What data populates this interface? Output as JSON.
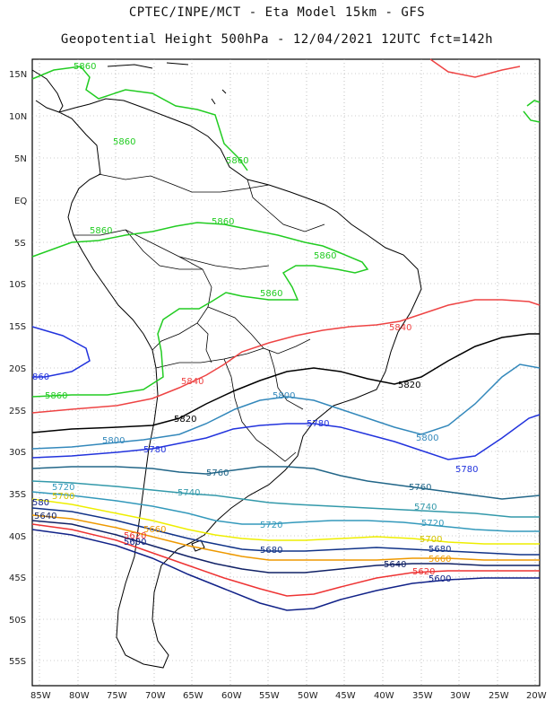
{
  "title_line1": "CPTEC/INPE/MCT -  Eta Model 15km - GFS",
  "title_line2": "Geopotential Height 500hPa - 12/04/2021 12UTC fct=142h",
  "lat_labels": [
    "15N",
    "10N",
    "5N",
    "EQ",
    "5S",
    "10S",
    "15S",
    "20S",
    "25S",
    "30S",
    "35S",
    "40S",
    "45S",
    "50S",
    "55S"
  ],
  "lon_labels": [
    "85W",
    "80W",
    "75W",
    "70W",
    "65W",
    "60W",
    "55W",
    "50W",
    "45W",
    "40W",
    "35W",
    "30W",
    "25W",
    "20W"
  ],
  "contours": [
    {
      "value": "5860",
      "color": "#22cc22"
    },
    {
      "value": "5840",
      "color": "#ee4444"
    },
    {
      "value": "5820",
      "color": "#000000"
    },
    {
      "value": "5800",
      "color": "#3388bb"
    },
    {
      "value": "5780",
      "color": "#2233dd"
    },
    {
      "value": "5760",
      "color": "#226688"
    },
    {
      "value": "5740",
      "color": "#3399aa"
    },
    {
      "value": "5720",
      "color": "#3399bb"
    },
    {
      "value": "5700",
      "color": "#eeee00"
    },
    {
      "value": "5680",
      "color": "#113388"
    },
    {
      "value": "5660",
      "color": "#ee9900"
    },
    {
      "value": "5640",
      "color": "#112266"
    },
    {
      "value": "5620",
      "color": "#ee3333"
    },
    {
      "value": "5600",
      "color": "#112288"
    }
  ],
  "contour_labels": [
    {
      "text": "5860",
      "color": "#22cc22"
    },
    {
      "text": "5860",
      "color": "#22cc22"
    },
    {
      "text": "5860",
      "color": "#22cc22"
    },
    {
      "text": "5860",
      "color": "#22cc22"
    },
    {
      "text": "5860",
      "color": "#22cc22"
    },
    {
      "text": "5860",
      "color": "#22cc22"
    },
    {
      "text": "5860",
      "color": "#22cc22"
    },
    {
      "text": "5860",
      "color": "#22cc22"
    },
    {
      "text": "5840",
      "color": "#ee4444"
    },
    {
      "text": "5840",
      "color": "#ee4444"
    },
    {
      "text": "5820",
      "color": "#000000"
    },
    {
      "text": "5820",
      "color": "#000000"
    },
    {
      "text": "5800",
      "color": "#3388bb"
    },
    {
      "text": "5800",
      "color": "#3388bb"
    },
    {
      "text": "5800",
      "color": "#3388bb"
    },
    {
      "text": "5780",
      "color": "#2233dd"
    },
    {
      "text": "5780",
      "color": "#2233dd"
    },
    {
      "text": "5780",
      "color": "#2233dd"
    },
    {
      "text": "5760",
      "color": "#226688"
    },
    {
      "text": "5760",
      "color": "#226688"
    },
    {
      "text": "5740",
      "color": "#3399aa"
    },
    {
      "text": "5740",
      "color": "#3399aa"
    },
    {
      "text": "5720",
      "color": "#3399bb"
    },
    {
      "text": "5720",
      "color": "#3399bb"
    },
    {
      "text": "5720",
      "color": "#3399bb"
    },
    {
      "text": "5700",
      "color": "#d4c400"
    },
    {
      "text": "5700",
      "color": "#d4c400"
    },
    {
      "text": "5680",
      "color": "#113388"
    },
    {
      "text": "5680",
      "color": "#113388"
    },
    {
      "text": "5660",
      "color": "#ee9900"
    },
    {
      "text": "5660",
      "color": "#ee9900"
    },
    {
      "text": "5640",
      "color": "#112266"
    },
    {
      "text": "5640",
      "color": "#112266"
    },
    {
      "text": "5620",
      "color": "#ee3333"
    },
    {
      "text": "5620",
      "color": "#ee3333"
    },
    {
      "text": "5600",
      "color": "#112288"
    },
    {
      "text": "5600",
      "color": "#112288"
    },
    {
      "text": "580",
      "color": "#112288"
    },
    {
      "text": "860",
      "color": "#2233dd"
    }
  ]
}
